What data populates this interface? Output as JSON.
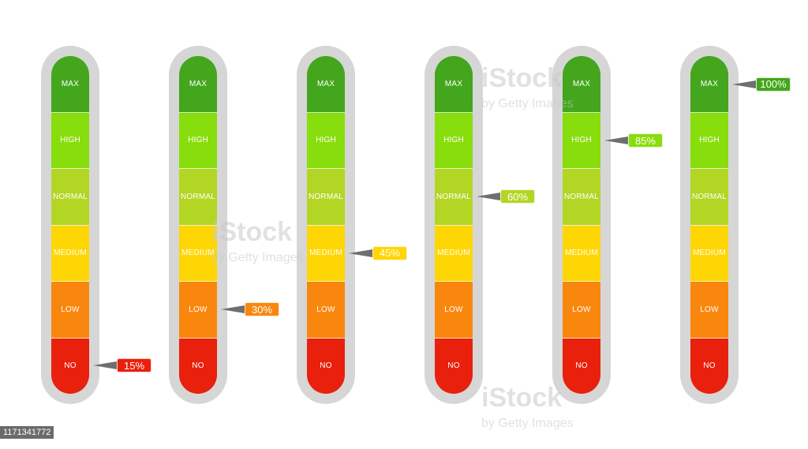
{
  "levels": [
    "MAX",
    "HIGH",
    "NORMAL",
    "MEDIUM",
    "LOW",
    "NO"
  ],
  "level_colors": [
    "#43a61c",
    "#88dd0c",
    "#b3d624",
    "#fed603",
    "#f9870e",
    "#e9200c"
  ],
  "pointer_color": "#6f6f6f",
  "meters": [
    {
      "value": "15%",
      "level_index": 5,
      "tag_color": "#e9200c"
    },
    {
      "value": "30%",
      "level_index": 4,
      "tag_color": "#f9870e"
    },
    {
      "value": "45%",
      "level_index": 3,
      "tag_color": "#fed603"
    },
    {
      "value": "60%",
      "level_index": 2,
      "tag_color": "#b3d624"
    },
    {
      "value": "85%",
      "level_index": 1,
      "tag_color": "#88dd0c"
    },
    {
      "value": "100%",
      "level_index": 0,
      "tag_color": "#43a61c"
    }
  ],
  "watermark": {
    "brand": "iStock",
    "credit": "by Getty Images"
  },
  "stock_id": "1171341772"
}
